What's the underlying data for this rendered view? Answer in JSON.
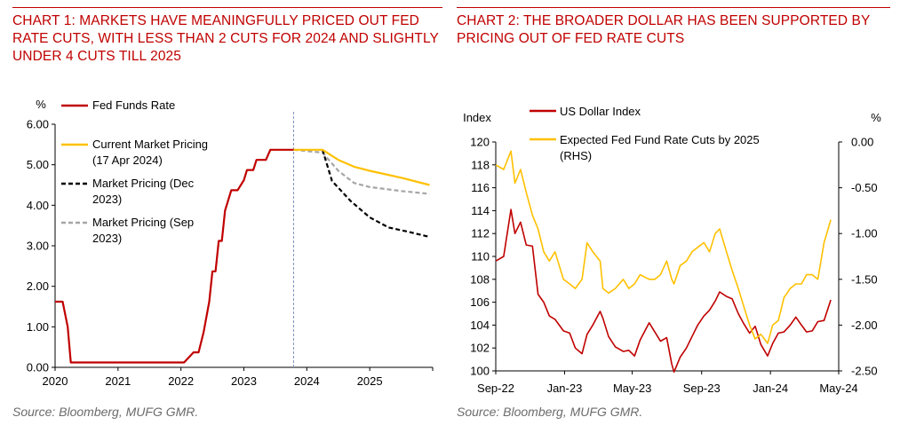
{
  "colors": {
    "red": "#c00000",
    "gold": "#ffc000",
    "grey": "#a6a6a6",
    "black": "#000000"
  },
  "chart_data": [
    {
      "type": "line",
      "title": "CHART 1: MARKETS HAVE MEANINGFULLY PRICED OUT FED RATE CUTS, WITH LESS THAN 2 CUTS FOR 2024 AND SLIGHTLY UNDER 4 CUTS TILL 2025",
      "source": "Source: Bloomberg, MUFG GMR.",
      "y_unit": "%",
      "ylim": [
        0,
        6
      ],
      "y_ticks": [
        "0.00",
        "1.00",
        "2.00",
        "3.00",
        "4.00",
        "5.00",
        "6.00"
      ],
      "xlim": [
        2020,
        2026
      ],
      "x_ticks": [
        "2020",
        "2021",
        "2022",
        "2023",
        "2024",
        "2025"
      ],
      "vline_x": 2023.79,
      "grid": false,
      "series": [
        {
          "name": "Fed Funds Rate",
          "color": "#c00000",
          "dash": "solid",
          "x": [
            2020.0,
            2020.12,
            2020.2,
            2020.25,
            2022.05,
            2022.2,
            2022.28,
            2022.36,
            2022.45,
            2022.5,
            2022.55,
            2022.6,
            2022.65,
            2022.7,
            2022.8,
            2022.9,
            2023.0,
            2023.05,
            2023.1,
            2023.15,
            2023.2,
            2023.3,
            2023.35,
            2023.42,
            2023.5,
            2023.55,
            2023.6,
            2023.79
          ],
          "y": [
            1.62,
            1.62,
            1.0,
            0.12,
            0.12,
            0.37,
            0.37,
            0.87,
            1.62,
            2.37,
            2.37,
            3.12,
            3.12,
            3.87,
            4.37,
            4.37,
            4.62,
            4.87,
            4.87,
            4.87,
            5.12,
            5.12,
            5.12,
            5.37,
            5.37,
            5.37,
            5.37,
            5.37
          ]
        },
        {
          "name": "Current Market Pricing (17 Apr 2024)",
          "color": "#ffc000",
          "dash": "solid",
          "x": [
            2023.79,
            2024.25,
            2024.5,
            2024.75,
            2025.0,
            2025.5,
            2025.95
          ],
          "y": [
            5.37,
            5.37,
            5.12,
            4.95,
            4.85,
            4.68,
            4.5
          ]
        },
        {
          "name": "Market Pricing (Dec 2023)",
          "color": "#000000",
          "dash": "dashed",
          "x": [
            2024.25,
            2024.4,
            2024.7,
            2025.0,
            2025.3,
            2025.6,
            2025.95
          ],
          "y": [
            5.37,
            4.6,
            4.1,
            3.7,
            3.45,
            3.35,
            3.22
          ]
        },
        {
          "name": "Market Pricing (Sep 2023)",
          "color": "#a6a6a6",
          "dash": "dashed",
          "x": [
            2023.79,
            2024.25,
            2024.5,
            2024.75,
            2025.0,
            2025.5,
            2025.95
          ],
          "y": [
            5.37,
            5.3,
            4.85,
            4.55,
            4.45,
            4.35,
            4.28
          ]
        }
      ]
    },
    {
      "type": "line",
      "title": "CHART 2: THE BROADER DOLLAR HAS BEEN SUPPORTED BY PRICING OUT OF FED RATE CUTS",
      "source": "Source: Bloomberg, MUFG GMR.",
      "left_axis": {
        "label": "Index",
        "ylim": [
          100,
          120
        ],
        "ticks": [
          "100",
          "102",
          "104",
          "106",
          "108",
          "110",
          "112",
          "114",
          "116",
          "118",
          "120"
        ]
      },
      "right_axis": {
        "label": "%",
        "ylim": [
          -2.5,
          0
        ],
        "ticks": [
          "-2.50",
          "-2.00",
          "-1.50",
          "-1.00",
          "-0.50",
          "0.00"
        ]
      },
      "x_ticks": [
        "Sep-22",
        "Jan-23",
        "May-23",
        "Sep-23",
        "Jan-24",
        "May-24"
      ],
      "x_tick_dates": [
        "2022-09-01",
        "2023-01-01",
        "2023-05-01",
        "2023-09-01",
        "2024-01-01",
        "2024-05-01"
      ],
      "grid": false,
      "series": [
        {
          "name": "US Dollar Index",
          "axis": "left",
          "color": "#c00000",
          "x": [
            "2022-09-01",
            "2022-09-15",
            "2022-09-28",
            "2022-10-05",
            "2022-10-15",
            "2022-10-25",
            "2022-11-05",
            "2022-11-15",
            "2022-11-25",
            "2022-12-05",
            "2022-12-15",
            "2022-12-30",
            "2023-01-10",
            "2023-01-20",
            "2023-02-01",
            "2023-02-10",
            "2023-02-20",
            "2023-03-05",
            "2023-03-10",
            "2023-03-20",
            "2023-04-01",
            "2023-04-15",
            "2023-04-25",
            "2023-05-05",
            "2023-05-15",
            "2023-05-31",
            "2023-06-10",
            "2023-06-20",
            "2023-07-01",
            "2023-07-10",
            "2023-07-14",
            "2023-07-25",
            "2023-08-05",
            "2023-08-15",
            "2023-08-25",
            "2023-09-05",
            "2023-09-15",
            "2023-09-25",
            "2023-10-03",
            "2023-10-15",
            "2023-10-25",
            "2023-11-05",
            "2023-11-15",
            "2023-11-25",
            "2023-12-05",
            "2023-12-15",
            "2023-12-27",
            "2024-01-05",
            "2024-01-15",
            "2024-01-25",
            "2024-02-05",
            "2024-02-15",
            "2024-02-25",
            "2024-03-05",
            "2024-03-15",
            "2024-03-25",
            "2024-04-05",
            "2024-04-17"
          ],
          "y": [
            109.6,
            110.0,
            114.1,
            112.0,
            113.0,
            111.0,
            110.9,
            106.7,
            106.0,
            104.8,
            104.5,
            103.5,
            103.3,
            102.0,
            101.5,
            103.2,
            104.0,
            105.2,
            104.6,
            103.0,
            102.1,
            101.7,
            101.8,
            101.3,
            102.7,
            104.2,
            103.4,
            102.6,
            102.9,
            100.6,
            99.9,
            101.2,
            102.0,
            103.0,
            104.0,
            104.8,
            105.3,
            106.1,
            106.9,
            106.5,
            106.3,
            105.0,
            104.1,
            103.3,
            103.9,
            102.3,
            101.3,
            102.4,
            103.3,
            103.4,
            104.0,
            104.7,
            104.0,
            103.4,
            103.5,
            104.3,
            104.4,
            106.2
          ]
        },
        {
          "name": "Expected Fed Fund Rate Cuts by 2025 (RHS)",
          "axis": "right",
          "color": "#ffc000",
          "x": [
            "2022-09-01",
            "2022-09-15",
            "2022-09-28",
            "2022-10-05",
            "2022-10-15",
            "2022-10-25",
            "2022-11-05",
            "2022-11-15",
            "2022-11-25",
            "2022-12-05",
            "2022-12-15",
            "2022-12-30",
            "2023-01-10",
            "2023-01-20",
            "2023-02-01",
            "2023-02-10",
            "2023-02-20",
            "2023-03-05",
            "2023-03-10",
            "2023-03-20",
            "2023-04-01",
            "2023-04-15",
            "2023-04-25",
            "2023-05-05",
            "2023-05-15",
            "2023-05-31",
            "2023-06-10",
            "2023-06-20",
            "2023-07-01",
            "2023-07-10",
            "2023-07-14",
            "2023-07-25",
            "2023-08-05",
            "2023-08-15",
            "2023-08-25",
            "2023-09-05",
            "2023-09-15",
            "2023-09-25",
            "2023-10-03",
            "2023-10-15",
            "2023-10-25",
            "2023-11-05",
            "2023-11-15",
            "2023-11-25",
            "2023-12-05",
            "2023-12-15",
            "2023-12-27",
            "2024-01-05",
            "2024-01-15",
            "2024-01-25",
            "2024-02-05",
            "2024-02-15",
            "2024-02-25",
            "2024-03-05",
            "2024-03-15",
            "2024-03-25",
            "2024-04-05",
            "2024-04-17"
          ],
          "y": [
            -0.25,
            -0.3,
            -0.1,
            -0.45,
            -0.3,
            -0.55,
            -0.8,
            -0.95,
            -1.2,
            -1.3,
            -1.2,
            -1.5,
            -1.55,
            -1.6,
            -1.5,
            -1.1,
            -1.2,
            -1.3,
            -1.6,
            -1.65,
            -1.6,
            -1.5,
            -1.6,
            -1.55,
            -1.45,
            -1.5,
            -1.5,
            -1.45,
            -1.3,
            -1.5,
            -1.55,
            -1.35,
            -1.3,
            -1.2,
            -1.15,
            -1.1,
            -1.2,
            -1.0,
            -0.95,
            -1.2,
            -1.4,
            -1.6,
            -1.8,
            -2.0,
            -2.15,
            -2.1,
            -2.2,
            -2.0,
            -1.95,
            -1.7,
            -1.6,
            -1.55,
            -1.55,
            -1.45,
            -1.45,
            -1.5,
            -1.1,
            -0.85
          ]
        }
      ]
    }
  ]
}
